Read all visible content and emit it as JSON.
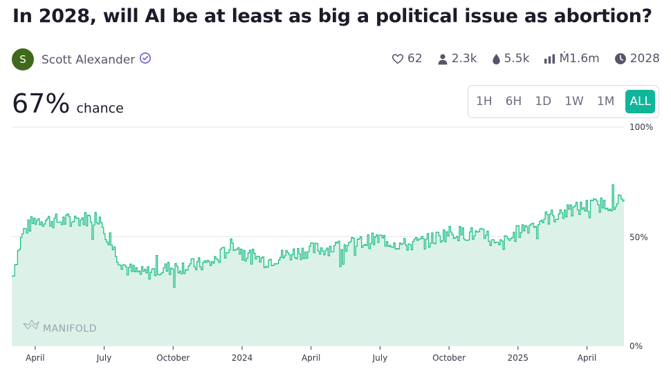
{
  "market": {
    "title": "In 2028, will AI be at least as big a political issue as abortion?",
    "probability": "67%",
    "probability_label": "chance"
  },
  "author": {
    "initial": "S",
    "name": "Scott Alexander",
    "avatar_color": "#3f6a1c",
    "verified_icon": "verified-check-icon"
  },
  "stats": [
    {
      "icon": "heart-icon",
      "value": "62"
    },
    {
      "icon": "user-icon",
      "value": "2.3k"
    },
    {
      "icon": "droplet-icon",
      "value": "5.5k"
    },
    {
      "icon": "bar-chart-icon",
      "value": "Ṁ1.6m"
    },
    {
      "icon": "clock-icon",
      "value": "2028"
    }
  ],
  "time_ranges": [
    "1H",
    "6H",
    "1D",
    "1W",
    "1M",
    "ALL"
  ],
  "selected_range": "ALL",
  "colors": {
    "accent": "#11b59a",
    "line": "#1fbf86",
    "area": "#dcf2e8"
  },
  "watermark": "MANIFOLD",
  "chart_data": {
    "type": "line",
    "x_labels": [
      "April",
      "July",
      "October",
      "2024",
      "April",
      "July",
      "October",
      "2025",
      "April"
    ],
    "y_labels": [
      "100%",
      "50%",
      "0%"
    ],
    "ylim": [
      0,
      100
    ],
    "x": [
      "2023-03",
      "2023-03-15",
      "2023-04",
      "2023-05",
      "2023-06",
      "2023-06-25",
      "2023-07-05",
      "2023-07-20",
      "2023-08",
      "2023-08-20",
      "2023-09",
      "2023-10",
      "2023-11",
      "2023-11-20",
      "2023-12",
      "2023-12-20",
      "2024-01",
      "2024-02",
      "2024-03",
      "2024-04",
      "2024-05",
      "2024-06",
      "2024-07",
      "2024-08",
      "2024-09",
      "2024-10",
      "2024-11",
      "2024-11-20",
      "2024-12",
      "2024-12-20",
      "2025-01",
      "2025-02",
      "2025-03",
      "2025-04",
      "2025-05",
      "2025-05-20"
    ],
    "values": [
      32,
      52,
      58,
      57,
      58,
      59,
      50,
      40,
      35,
      33,
      34,
      36,
      37,
      38,
      41,
      47,
      42,
      39,
      42,
      44,
      45,
      47,
      49,
      46,
      48,
      52,
      51,
      50,
      45,
      49,
      53,
      58,
      61,
      64,
      65,
      67
    ]
  }
}
